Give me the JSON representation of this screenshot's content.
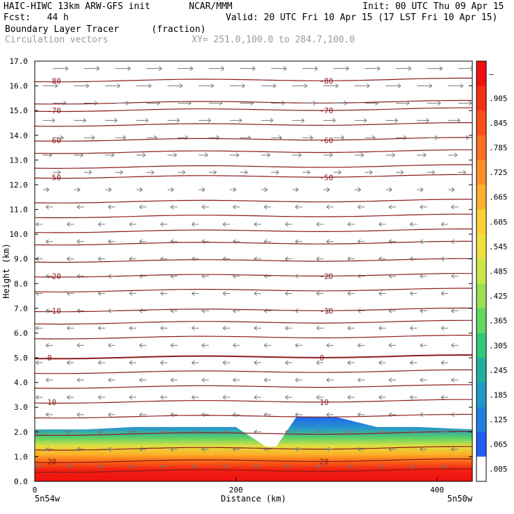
{
  "header": {
    "title": "HAIC-HIWC 13km ARW-GFS init",
    "org": "NCAR/MMM",
    "init": "Init: 00 UTC Thu 09 Apr 15",
    "fcst": "Fcst:   44 h",
    "valid": "Valid: 20 UTC Fri 10 Apr 15 (17 LST Fri 10 Apr 15)",
    "field": "Boundary Layer Tracer",
    "units": "(fraction)",
    "vectors": "Circulation vectors",
    "xy": "XY= 251.0,100.0 to 284.7,100.0"
  },
  "chart_data": {
    "type": "heatmap",
    "xlabel": "Distance (km)",
    "ylabel": "Height (km)",
    "xlim": [
      0,
      435
    ],
    "ylim": [
      0,
      17
    ],
    "x_ticks": [
      "0",
      "200",
      "400"
    ],
    "y_ticks": [
      "0.0",
      "1.0",
      "2.0",
      "3.0",
      "4.0",
      "5.0",
      "6.0",
      "7.0",
      "8.0",
      "9.0",
      "10.0",
      "11.0",
      "12.0",
      "13.0",
      "14.0",
      "15.0",
      "16.0",
      "17.0"
    ],
    "x_endpoints": {
      "left": "5n54w",
      "right": "5n50w"
    },
    "colorbar": {
      "labels": [
        "–",
        ".905",
        ".845",
        ".785",
        ".725",
        ".665",
        ".605",
        ".545",
        ".485",
        ".425",
        ".365",
        ".305",
        ".245",
        ".185",
        ".125",
        ".065",
        ".005"
      ],
      "colors": [
        "#f01010",
        "#f53010",
        "#f85018",
        "#fa7020",
        "#fc9028",
        "#fdb030",
        "#fed038",
        "#f0e040",
        "#c8e848",
        "#98e050",
        "#60d860",
        "#30c878",
        "#20b0a0",
        "#2098c8",
        "#2080e0",
        "#2060f0",
        "#ffffff"
      ]
    },
    "temperature_contours": {
      "levels": [
        -80,
        -70,
        -60,
        -50,
        -20,
        -10,
        0,
        10,
        20
      ],
      "labels": [
        "-80",
        "-70",
        "-60",
        "-50",
        "-20",
        "-10",
        "0",
        "10",
        "20"
      ],
      "heights": [
        16.2,
        15.0,
        13.8,
        12.3,
        8.3,
        6.9,
        5.0,
        3.2,
        0.8
      ],
      "extra_heights": [
        15.3,
        14.4,
        13.3,
        12.7,
        11.3,
        10.7,
        10.1,
        9.6,
        8.9,
        7.7,
        6.4,
        5.8,
        4.4,
        3.8,
        2.6,
        1.9,
        1.3,
        0.4
      ],
      "color": "#8b1a1a"
    },
    "tracer_layer": {
      "distance_km": [
        0,
        50,
        100,
        160,
        200,
        230,
        240,
        260,
        300,
        340,
        380,
        435
      ],
      "top_height_km": [
        2.1,
        2.1,
        2.2,
        2.2,
        2.2,
        1.4,
        1.4,
        2.6,
        2.6,
        2.2,
        2.2,
        2.1
      ]
    },
    "wind_vectors": {
      "upper_direction": "eastward",
      "lower_direction": "westward",
      "reversal_height_km": 11.5
    }
  }
}
